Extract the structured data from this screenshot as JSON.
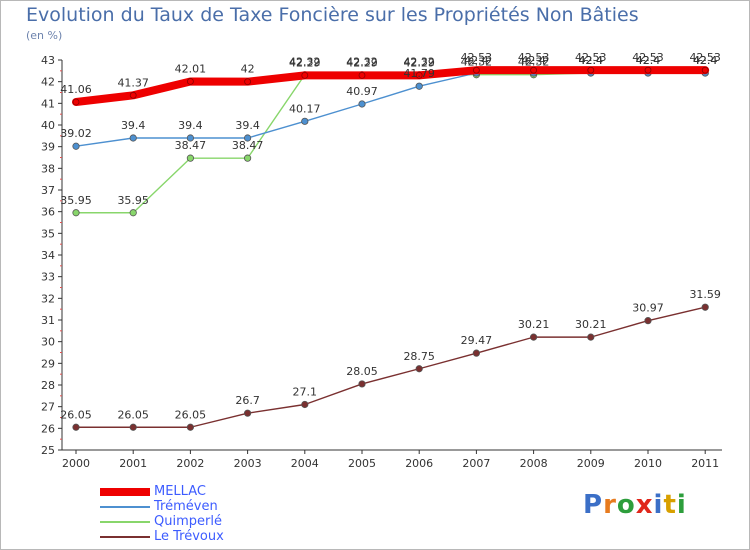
{
  "title": "Evolution du Taux de Taxe Foncière sur les Propriétés Non Bâties",
  "unit_label": "(en %)",
  "logo": {
    "text": "Proxiti",
    "colors": [
      "#3b6fc7",
      "#e77b1f",
      "#2d9e3c",
      "#e0271b",
      "#3b6fc7",
      "#d8a000",
      "#2d9e3c"
    ]
  },
  "chart_data": {
    "type": "line",
    "x": [
      "2000",
      "2001",
      "2002",
      "2003",
      "2004",
      "2005",
      "2006",
      "2007",
      "2008",
      "2009",
      "2010",
      "2011"
    ],
    "ylim": [
      25,
      43
    ],
    "yticks": [
      25,
      26,
      27,
      28,
      29,
      30,
      31,
      32,
      33,
      34,
      35,
      36,
      37,
      38,
      39,
      40,
      41,
      42,
      43
    ],
    "grid": false,
    "legend_position": "bottom-left",
    "series": [
      {
        "name": "MELLAC",
        "color": "#ee0000",
        "values": [
          41.06,
          41.37,
          42.01,
          42,
          42.29,
          42.29,
          42.29,
          42.53,
          42.53,
          42.53,
          42.53,
          42.53
        ],
        "labels": [
          "41.06",
          "41.37",
          "42.01",
          "42",
          "42.29",
          "42.29",
          "42.29",
          "42.53",
          "42.53",
          "42.53",
          "42.53",
          "42.53"
        ]
      },
      {
        "name": "Tréméven",
        "color": "#4d90d0",
        "values": [
          39.02,
          39.4,
          39.4,
          39.4,
          40.17,
          40.97,
          41.79,
          42.4,
          42.4,
          42.4,
          42.4,
          42.4
        ],
        "labels": [
          "39.02",
          "39.4",
          "39.4",
          "39.4",
          "40.17",
          "40.97",
          "41.79",
          "42.4",
          "42.4",
          "42.4",
          "42.4",
          "42.4"
        ]
      },
      {
        "name": "Quimperlé",
        "color": "#88d66b",
        "values": [
          35.95,
          35.95,
          38.47,
          38.47,
          42.32,
          42.32,
          42.32,
          42.32,
          42.32,
          42.4,
          42.4,
          42.4
        ],
        "labels": [
          "35.95",
          "35.95",
          "38.47",
          "38.47",
          "42.32",
          "42.32",
          "42.32",
          "42.32",
          "42.32",
          "42.4",
          "42.4",
          "42.4"
        ]
      },
      {
        "name": "Le Trévoux",
        "color": "#7a3030",
        "values": [
          26.05,
          26.05,
          26.05,
          26.7,
          27.1,
          28.05,
          28.75,
          29.47,
          30.21,
          30.21,
          30.97,
          31.59
        ],
        "labels": [
          "26.05",
          "26.05",
          "26.05",
          "26.7",
          "27.1",
          "28.05",
          "28.75",
          "29.47",
          "30.21",
          "30.21",
          "30.97",
          "31.59"
        ]
      }
    ]
  }
}
